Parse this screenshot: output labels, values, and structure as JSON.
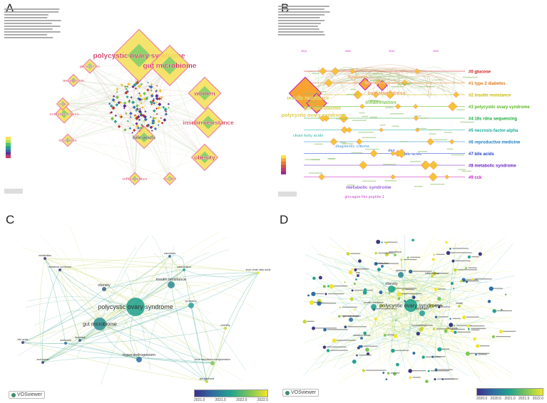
{
  "panels": {
    "A": {
      "letter": "A",
      "nodes": [
        {
          "label": "polycystic ovary syndrome",
          "color": "#cc1f4a"
        },
        {
          "label": "gut microbiome",
          "color": "#cc1f4a"
        },
        {
          "label": "women",
          "color": "#cc1f4a"
        },
        {
          "label": "insulin resistance",
          "color": "#cc1f4a"
        },
        {
          "label": "obesity",
          "color": "#cc1f4a"
        },
        {
          "label": "bile acids",
          "color": "#222222"
        },
        {
          "label": "oxidative stress",
          "color": "#cc1f4a"
        },
        {
          "label": "prevalence",
          "color": "#cc1f4a"
        },
        {
          "label": "metabolism",
          "color": "#cc1f4a"
        },
        {
          "label": "risk",
          "color": "#cc1f4a"
        },
        {
          "label": "dysbiosis",
          "color": "#cc1f4a"
        },
        {
          "label": "inflammation",
          "color": "#cc1f4a"
        },
        {
          "label": "health",
          "color": "#cc1f4a"
        }
      ]
    },
    "B": {
      "letter": "B",
      "years": [
        "2013",
        "2014",
        "2015",
        "2016",
        "2017",
        "2018",
        "2019",
        "2020",
        "2021",
        "2022",
        "2023",
        "2024"
      ],
      "clusters": [
        {
          "label": "#0 glucose",
          "color": "#d41a1a"
        },
        {
          "label": "#1 type 2 diabetes",
          "color": "#e07818"
        },
        {
          "label": "#2 insulin resistance",
          "color": "#c9b800"
        },
        {
          "label": "#3 polycystic ovary syndrome",
          "color": "#56b81c"
        },
        {
          "label": "#4 16s rdna sequencing",
          "color": "#1eaa3a"
        },
        {
          "label": "#5 necrosis-factor-alpha",
          "color": "#1aaa9a"
        },
        {
          "label": "#6 reproductive medicine",
          "color": "#1e7fc4"
        },
        {
          "label": "#7 bile acids",
          "color": "#2244cc"
        },
        {
          "label": "#8 metabolic syndrome",
          "color": "#6a22c4"
        },
        {
          "label": "#9 cck",
          "color": "#c41ac0"
        }
      ],
      "terms": [
        {
          "label": "dysbiosis",
          "color": "#e07818"
        },
        {
          "label": "fatty liver disease",
          "color": "#e07818"
        },
        {
          "label": "oxidative stress",
          "color": "#e07818"
        },
        {
          "label": "insulin resistance",
          "color": "#c9b800"
        },
        {
          "label": "gut microbiome",
          "color": "#c9b800"
        },
        {
          "label": "polycystic ovary syndrome",
          "color": "#c9b800"
        },
        {
          "label": "inflammation",
          "color": "#56b81c"
        },
        {
          "label": "chain fatty acids",
          "color": "#1aaa9a"
        },
        {
          "label": "diagnostic criteria",
          "color": "#1e7fc4"
        },
        {
          "label": "diet",
          "color": "#2244cc"
        },
        {
          "label": "bile acids",
          "color": "#2244cc"
        },
        {
          "label": "metabolic syndrome",
          "color": "#6a22c4"
        },
        {
          "label": "glucagon like peptide 1",
          "color": "#c41ac0"
        }
      ]
    },
    "C": {
      "letter": "C",
      "nodes": [
        {
          "label": "polycystic ovary syndrome"
        },
        {
          "label": "gut microbiome"
        },
        {
          "label": "insulin resistance"
        },
        {
          "label": "obesity"
        },
        {
          "label": "hyperandrogenism"
        },
        {
          "label": "fecal microbiota transplantation"
        },
        {
          "label": "probiotics"
        },
        {
          "label": "dysbiosis"
        },
        {
          "label": "androgens"
        },
        {
          "label": "metformin"
        },
        {
          "label": "bile acids"
        },
        {
          "label": "metabolic syndrome"
        },
        {
          "label": "short-chain fatty acids"
        },
        {
          "label": "metabolites"
        },
        {
          "label": "inflammation"
        },
        {
          "label": "gut dysbiosis"
        },
        {
          "label": "infertility"
        },
        {
          "label": "microbiota"
        }
      ],
      "logo": "VOSviewer",
      "scale_ticks": [
        "2021.0",
        "2021.5",
        "2022.0",
        "2022.5"
      ]
    },
    "D": {
      "letter": "D",
      "nodes": [
        {
          "label": "polycystic ovary syndrome"
        },
        {
          "label": "women"
        },
        {
          "label": "obesity"
        },
        {
          "label": "dysbiosis"
        },
        {
          "label": "insulin resistance"
        },
        {
          "label": "gut microbiota"
        },
        {
          "label": "prevalence"
        },
        {
          "label": "hyperandrogenism"
        },
        {
          "label": "metabolism"
        },
        {
          "label": "risk"
        },
        {
          "label": "inflammation"
        },
        {
          "label": "health"
        },
        {
          "label": "bile acids"
        },
        {
          "label": "oxidative stress"
        }
      ],
      "logo": "VOSviewer",
      "scale_ticks": [
        "2020.0",
        "2020.5",
        "2021.0",
        "2021.5",
        "2022.0"
      ]
    }
  }
}
